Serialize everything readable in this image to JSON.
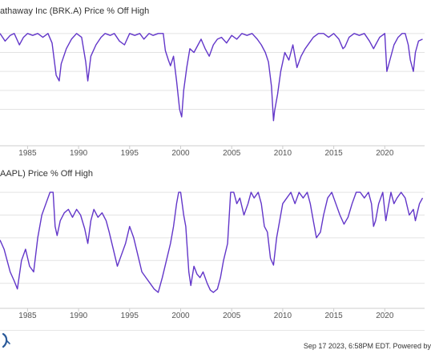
{
  "colors": {
    "line": "#6236c9",
    "grid": "#e3e3e3",
    "text": "#333333"
  },
  "footer": {
    "text": "Sep 17 2023, 6:58PM EDT. Powered by"
  },
  "logo": {
    "icon": "ycharts-logo-icon"
  },
  "chart_data": [
    {
      "type": "line",
      "title": "athaway Inc (BRK.A) Price % Off High",
      "grid": "horizontal",
      "x_ticks": [
        1985,
        1990,
        1995,
        2000,
        2005,
        2010,
        2015,
        2020
      ],
      "x_range": [
        1982.3,
        2023.9
      ],
      "ylim": [
        -55,
        5
      ],
      "y_gridlines": [
        0,
        -10,
        -20,
        -30,
        -40
      ],
      "series": [
        {
          "x": [
            1982.3,
            1982.8,
            1983.3,
            1983.7,
            1984.2,
            1984.6,
            1985.0,
            1985.5,
            1986.0,
            1986.5,
            1987.0,
            1987.4,
            1987.8,
            1988.1,
            1988.3,
            1988.8,
            1989.3,
            1989.8,
            1990.3,
            1990.7,
            1990.9,
            1991.2,
            1991.7,
            1992.2,
            1992.6,
            1993.1,
            1993.5,
            1994.0,
            1994.5,
            1995.0,
            1995.5,
            1996.0,
            1996.4,
            1996.9,
            1997.3,
            1997.8,
            1998.3,
            1998.5,
            1998.8,
            1999.0,
            1999.3,
            1999.6,
            1999.9,
            2000.1,
            2000.3,
            2000.6,
            2000.9,
            2001.3,
            2001.7,
            2002.0,
            2002.4,
            2002.8,
            2003.2,
            2003.6,
            2004.0,
            2004.5,
            2005.0,
            2005.5,
            2006.0,
            2006.5,
            2007.0,
            2007.5,
            2007.9,
            2008.3,
            2008.6,
            2008.9,
            2009.1,
            2009.2,
            2009.5,
            2009.8,
            2010.2,
            2010.6,
            2011.0,
            2011.4,
            2011.8,
            2012.2,
            2012.6,
            2013.0,
            2013.5,
            2014.0,
            2014.5,
            2015.0,
            2015.5,
            2015.9,
            2016.1,
            2016.5,
            2017.0,
            2017.5,
            2018.0,
            2018.5,
            2018.9,
            2019.1,
            2019.5,
            2020.0,
            2020.2,
            2020.5,
            2020.9,
            2021.3,
            2021.7,
            2022.0,
            2022.3,
            2022.5,
            2022.8,
            2023.0,
            2023.3,
            2023.7
          ],
          "y": [
            0,
            -4,
            -1,
            0,
            -6,
            -2,
            0,
            -1,
            0,
            -2,
            0,
            -5,
            -22,
            -25,
            -16,
            -8,
            -3,
            0,
            -2,
            -15,
            -25,
            -12,
            -6,
            -2,
            0,
            -1,
            0,
            -4,
            -6,
            0,
            -1,
            0,
            -3,
            0,
            -1,
            0,
            0,
            -9,
            -14,
            -17,
            -12,
            -25,
            -40,
            -44,
            -30,
            -18,
            -8,
            -10,
            -6,
            -3,
            -8,
            -12,
            -6,
            -3,
            -2,
            -5,
            -1,
            -3,
            0,
            -1,
            0,
            -3,
            -6,
            -10,
            -15,
            -28,
            -46,
            -41,
            -32,
            -20,
            -10,
            -14,
            -6,
            -18,
            -12,
            -8,
            -5,
            -2,
            0,
            0,
            -2,
            0,
            -3,
            -8,
            -7,
            -2,
            0,
            -1,
            0,
            -4,
            -8,
            -6,
            -2,
            0,
            -20,
            -14,
            -6,
            -2,
            0,
            0,
            -6,
            -14,
            -20,
            -10,
            -4,
            -3
          ]
        }
      ]
    },
    {
      "type": "line",
      "title": "AAPL) Price % Off High",
      "grid": "horizontal",
      "x_ticks": [
        1985,
        1990,
        1995,
        2000,
        2005,
        2010,
        2015,
        2020
      ],
      "x_range": [
        1982.3,
        2023.9
      ],
      "ylim": [
        -95,
        5
      ],
      "y_gridlines": [
        0,
        -20,
        -40,
        -60,
        -80
      ],
      "series": [
        {
          "x": [
            1982.3,
            1982.7,
            1983.0,
            1983.3,
            1983.7,
            1984.0,
            1984.4,
            1984.8,
            1985.2,
            1985.6,
            1986.0,
            1986.4,
            1986.8,
            1987.2,
            1987.5,
            1987.7,
            1987.9,
            1988.2,
            1988.6,
            1989.0,
            1989.4,
            1989.8,
            1990.2,
            1990.6,
            1990.9,
            1991.2,
            1991.5,
            1991.9,
            1992.3,
            1992.7,
            1993.0,
            1993.4,
            1993.8,
            1994.2,
            1994.6,
            1995.0,
            1995.4,
            1995.8,
            1996.2,
            1996.6,
            1997.0,
            1997.4,
            1997.8,
            1998.2,
            1998.6,
            1999.0,
            1999.3,
            1999.6,
            1999.8,
            2000.0,
            2000.3,
            2000.5,
            2000.8,
            2001.0,
            2001.3,
            2001.6,
            2001.9,
            2002.2,
            2002.6,
            2002.9,
            2003.2,
            2003.6,
            2003.9,
            2004.2,
            2004.6,
            2004.9,
            2005.2,
            2005.5,
            2005.8,
            2006.2,
            2006.6,
            2006.9,
            2007.2,
            2007.6,
            2007.9,
            2008.2,
            2008.5,
            2008.8,
            2009.1,
            2009.4,
            2009.7,
            2010.0,
            2010.4,
            2010.8,
            2011.2,
            2011.6,
            2012.0,
            2012.4,
            2012.7,
            2013.0,
            2013.3,
            2013.7,
            2014.0,
            2014.4,
            2014.8,
            2015.2,
            2015.6,
            2016.0,
            2016.4,
            2016.8,
            2017.2,
            2017.6,
            2018.0,
            2018.4,
            2018.7,
            2018.9,
            2019.1,
            2019.4,
            2019.8,
            2020.1,
            2020.3,
            2020.6,
            2020.9,
            2021.2,
            2021.6,
            2022.0,
            2022.4,
            2022.8,
            2023.0,
            2023.4,
            2023.7
          ],
          "y": [
            -42,
            -50,
            -60,
            -70,
            -78,
            -85,
            -60,
            -50,
            -65,
            -70,
            -40,
            -20,
            -10,
            0,
            0,
            -30,
            -38,
            -25,
            -18,
            -15,
            -22,
            -15,
            -20,
            -32,
            -45,
            -25,
            -15,
            -22,
            -18,
            -25,
            -35,
            -50,
            -65,
            -55,
            -45,
            -30,
            -40,
            -55,
            -70,
            -75,
            -80,
            -85,
            -88,
            -75,
            -60,
            -45,
            -30,
            -10,
            0,
            0,
            -20,
            -30,
            -70,
            -82,
            -65,
            -72,
            -75,
            -70,
            -80,
            -86,
            -88,
            -85,
            -75,
            -60,
            -45,
            0,
            0,
            -10,
            -5,
            -20,
            -10,
            0,
            -5,
            0,
            -10,
            -30,
            -35,
            -58,
            -64,
            -40,
            -25,
            -10,
            -5,
            0,
            -10,
            0,
            -5,
            0,
            -10,
            -25,
            -40,
            -35,
            -20,
            -5,
            0,
            -10,
            -20,
            -28,
            -22,
            -10,
            0,
            0,
            -5,
            0,
            -10,
            -30,
            -25,
            -10,
            0,
            -25,
            -15,
            0,
            -10,
            -5,
            0,
            -5,
            -20,
            -15,
            -25,
            -10,
            -5
          ]
        }
      ]
    }
  ]
}
